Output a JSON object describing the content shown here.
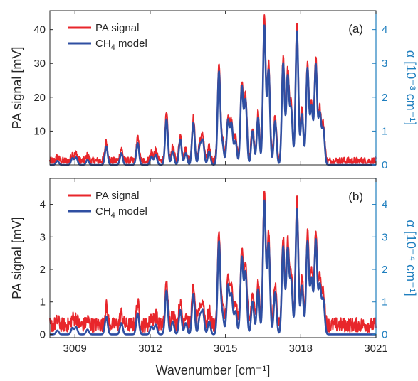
{
  "chart_data": [
    {
      "type": "line",
      "panel_label": "(a)",
      "xlim": [
        3008,
        3021
      ],
      "ylim_left": [
        0,
        45.6
      ],
      "ylim_right": [
        0,
        4.56
      ],
      "yticks_left": [
        "10",
        "20",
        "30",
        "40"
      ],
      "yticks_right": [
        "0",
        "1",
        "2",
        "3",
        "4"
      ],
      "ylabel_left": "PA signal  [mV]",
      "ylabel_right": "α  [10⁻³ cm⁻¹]",
      "legend_position": "top-left",
      "grid": false,
      "series": [
        {
          "name": "PA signal",
          "name_sub": "",
          "name_suffix": "",
          "color": "#e8262b",
          "noise": 0.45,
          "axis": "left"
        },
        {
          "name": "CH",
          "name_sub": "4",
          "name_suffix": " model",
          "color": "#2f4fa2",
          "noise": 0,
          "axis": "left"
        }
      ],
      "peaks": [
        [
          3008.3,
          0.12
        ],
        [
          3008.9,
          0.2
        ],
        [
          3009.05,
          0.22
        ],
        [
          3009.5,
          0.15
        ],
        [
          3010.25,
          0.55
        ],
        [
          3010.85,
          0.35
        ],
        [
          3011.5,
          0.65
        ],
        [
          3012.05,
          0.25
        ],
        [
          3012.22,
          0.3
        ],
        [
          3012.65,
          1.35
        ],
        [
          3012.9,
          0.4
        ],
        [
          3013.2,
          0.75
        ],
        [
          3013.42,
          0.35
        ],
        [
          3013.72,
          1.25
        ],
        [
          3013.98,
          0.55
        ],
        [
          3014.1,
          0.7
        ],
        [
          3014.35,
          0.4
        ],
        [
          3014.74,
          2.75
        ],
        [
          3014.88,
          0.6
        ],
        [
          3015.1,
          1.3
        ],
        [
          3015.24,
          1.2
        ],
        [
          3015.4,
          0.7
        ],
        [
          3015.65,
          2.3
        ],
        [
          3015.8,
          1.9
        ],
        [
          3016.08,
          1.0
        ],
        [
          3016.3,
          1.4
        ],
        [
          3016.55,
          4.1
        ],
        [
          3016.72,
          2.8
        ],
        [
          3016.98,
          1.3
        ],
        [
          3017.3,
          3.0
        ],
        [
          3017.48,
          2.6
        ],
        [
          3017.62,
          1.6
        ],
        [
          3017.85,
          3.95
        ],
        [
          3018.05,
          1.5
        ],
        [
          3018.27,
          2.85
        ],
        [
          3018.43,
          1.7
        ],
        [
          3018.6,
          2.95
        ],
        [
          3018.76,
          1.5
        ],
        [
          3018.9,
          1.05
        ]
      ]
    },
    {
      "type": "line",
      "panel_label": "(b)",
      "xlim": [
        3008,
        3021
      ],
      "ylim_left": [
        -0.1,
        4.8
      ],
      "ylim_right": [
        -0.1,
        4.8
      ],
      "yticks_left": [
        "0",
        "1",
        "2",
        "3",
        "4"
      ],
      "yticks_right": [
        "0",
        "1",
        "2",
        "3",
        "4"
      ],
      "xticks": [
        "3009",
        "3012",
        "3015",
        "3018",
        "3021"
      ],
      "xlabel": "Wavenumber  [cm⁻¹]",
      "ylabel_left": "PA signal  [mV]",
      "ylabel_right": "α  [10⁻⁴ cm⁻¹]",
      "legend_position": "top-left",
      "grid": false,
      "series": [
        {
          "name": "PA signal",
          "name_sub": "",
          "name_suffix": "",
          "color": "#e8262b",
          "noise": 0.28,
          "axis": "left"
        },
        {
          "name": "CH",
          "name_sub": "4",
          "name_suffix": " model",
          "color": "#2f4fa2",
          "noise": 0,
          "axis": "left"
        }
      ],
      "peaks": [
        [
          3008.3,
          0.12
        ],
        [
          3008.9,
          0.2
        ],
        [
          3009.05,
          0.22
        ],
        [
          3009.5,
          0.15
        ],
        [
          3010.25,
          0.55
        ],
        [
          3010.85,
          0.35
        ],
        [
          3011.5,
          0.65
        ],
        [
          3012.05,
          0.25
        ],
        [
          3012.22,
          0.3
        ],
        [
          3012.65,
          1.35
        ],
        [
          3012.9,
          0.4
        ],
        [
          3013.2,
          0.75
        ],
        [
          3013.42,
          0.35
        ],
        [
          3013.72,
          1.25
        ],
        [
          3013.98,
          0.55
        ],
        [
          3014.1,
          0.7
        ],
        [
          3014.35,
          0.4
        ],
        [
          3014.74,
          2.85
        ],
        [
          3014.88,
          0.6
        ],
        [
          3015.1,
          1.5
        ],
        [
          3015.24,
          1.2
        ],
        [
          3015.4,
          0.7
        ],
        [
          3015.65,
          2.35
        ],
        [
          3015.8,
          1.9
        ],
        [
          3016.08,
          1.0
        ],
        [
          3016.3,
          1.4
        ],
        [
          3016.55,
          4.1
        ],
        [
          3016.72,
          2.8
        ],
        [
          3016.98,
          1.3
        ],
        [
          3017.3,
          2.7
        ],
        [
          3017.48,
          2.6
        ],
        [
          3017.62,
          1.6
        ],
        [
          3017.85,
          3.85
        ],
        [
          3018.05,
          1.5
        ],
        [
          3018.27,
          2.85
        ],
        [
          3018.43,
          1.7
        ],
        [
          3018.6,
          2.9
        ],
        [
          3018.76,
          1.5
        ],
        [
          3018.9,
          1.05
        ]
      ]
    }
  ]
}
